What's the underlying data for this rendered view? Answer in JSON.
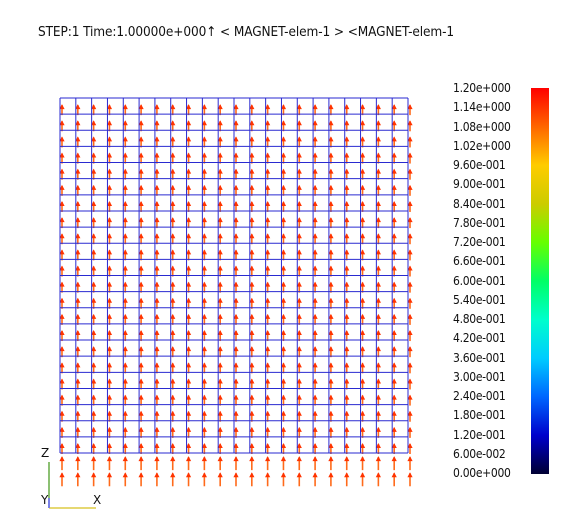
{
  "viewport": {
    "title": "STEP:1 Time:1.00000e+000↑ < MAGNET-elem-1 > <MAGNET-elem-1",
    "mesh_color": "#2a2ad0",
    "vector_color": "#ff6a1a",
    "mesh_columns": 22,
    "mesh_rows": 22
  },
  "legend": {
    "labels": [
      "1.20e+000",
      "1.14e+000",
      "1.08e+000",
      "1.02e+000",
      "9.60e-001",
      "9.00e-001",
      "8.40e-001",
      "7.80e-001",
      "7.20e-001",
      "6.60e-001",
      "6.00e-001",
      "5.40e-001",
      "4.80e-001",
      "4.20e-001",
      "3.60e-001",
      "3.00e-001",
      "2.40e-001",
      "1.80e-001",
      "1.20e-001",
      "6.00e-002",
      "0.00e+000"
    ],
    "colors": [
      "#ff0000",
      "#ff6600",
      "#ffcc00",
      "#cccc00",
      "#66ff00",
      "#00ff66",
      "#00ffcc",
      "#00ccff",
      "#0066ff",
      "#0000cc",
      "#000033"
    ]
  },
  "axes": {
    "z_label": "Z",
    "y_label": "Y",
    "x_label": "X",
    "z_color": "#66aa44",
    "y_color": "#6666ff",
    "x_color": "#ddcc44"
  }
}
